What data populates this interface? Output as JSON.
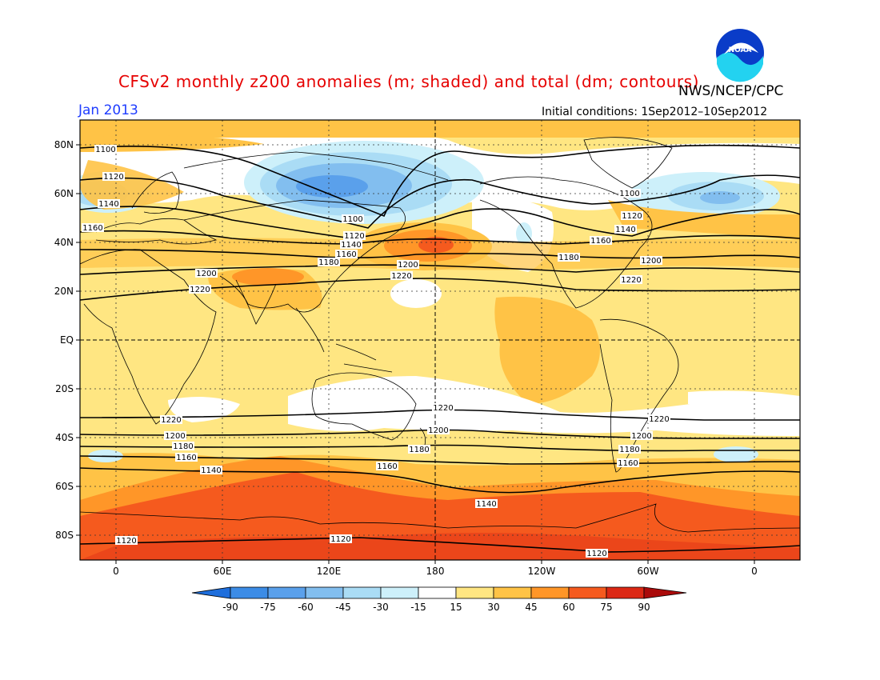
{
  "header": {
    "title": "CFSv2 monthly z200 anomalies (m; shaded) and total (dm; contours)",
    "agency": "NWS/NCEP/CPC",
    "month": "Jan 2013",
    "initial_conditions": "Initial conditions: 1Sep2012–10Sep2012",
    "logo_text": "NOAA"
  },
  "map": {
    "lat_labels": [
      "80N",
      "60N",
      "40N",
      "20N",
      "EQ",
      "20S",
      "40S",
      "60S",
      "80S"
    ],
    "lon_labels": [
      "0",
      "60E",
      "120E",
      "180",
      "120W",
      "60W",
      "0"
    ],
    "contour_labels": [
      "1100",
      "1120",
      "1140",
      "1160",
      "1180",
      "1200",
      "1220"
    ]
  },
  "colorbar": {
    "labels": [
      "-90",
      "-75",
      "-60",
      "-45",
      "-30",
      "-15",
      "15",
      "30",
      "45",
      "60",
      "75",
      "90"
    ],
    "colors": [
      "#1e6edc",
      "#3c8ce6",
      "#5aa0eb",
      "#82beef",
      "#aadcf5",
      "#cdf0fa",
      "#ffffff",
      "#ffe682",
      "#ffc346",
      "#ff9628",
      "#f55a1e",
      "#dc2814",
      "#aa0a0a"
    ]
  },
  "colors": {
    "title": "#e60000",
    "month": "#1e3cff",
    "logo_blue": "#0a3cc8",
    "logo_cyan": "#23d2f0"
  }
}
